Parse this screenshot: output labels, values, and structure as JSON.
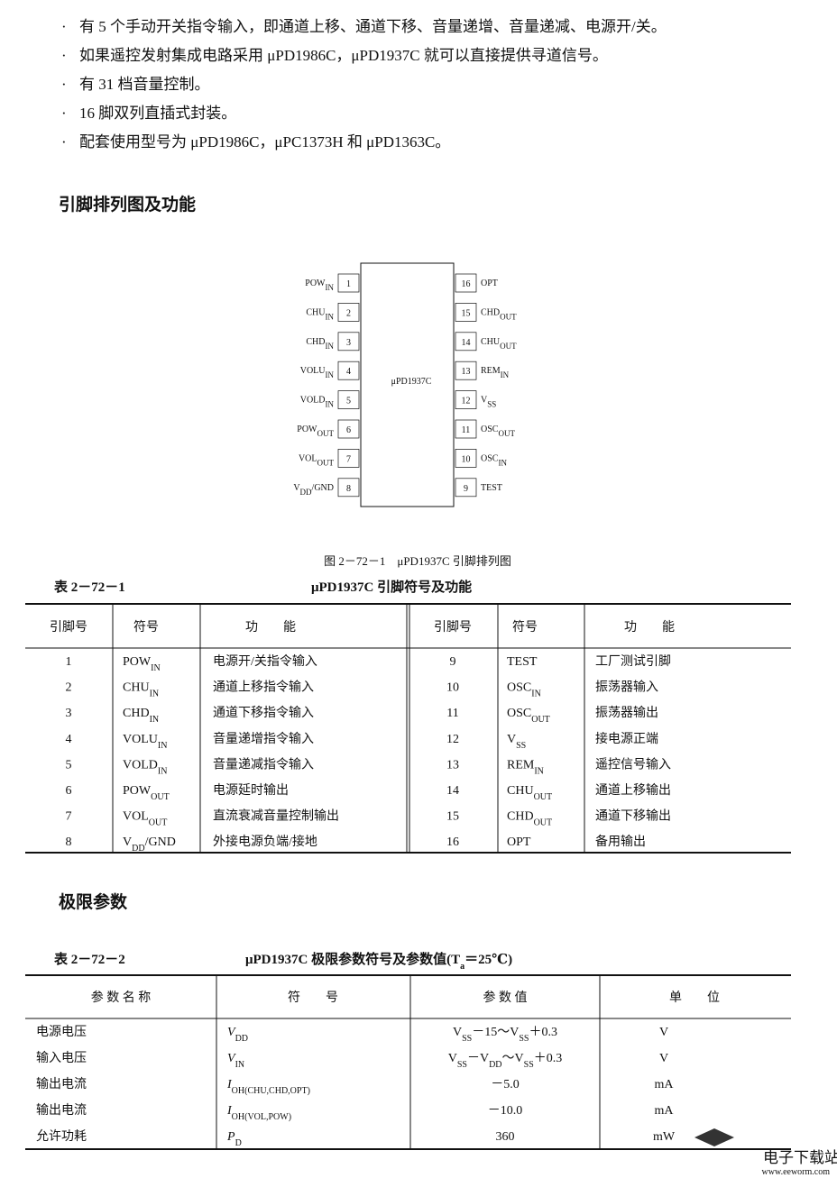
{
  "bullets": [
    "有 5 个手动开关指令输入，即通道上移、通道下移、音量递增、音量递减、电源开/关。",
    "如果遥控发射集成电路采用 μPD1986C，μPD1937C 就可以直接提供寻道信号。",
    "有 31 档音量控制。",
    "16 脚双列直插式封装。",
    "配套使用型号为 μPD1986C，μPC1373H 和 μPD1363C。"
  ],
  "section1": "引脚排列图及功能",
  "diagram": {
    "chip": "μPD1937C",
    "caption": "图 2－72－1　μPD1937C 引脚排列图",
    "pins": [
      {
        "number": 1,
        "symbol": [
          "POW",
          "IN"
        ],
        "function": "电源开/关指令输入"
      },
      {
        "number": 2,
        "symbol": [
          "CHU",
          "IN"
        ],
        "function": "通道上移指令输入"
      },
      {
        "number": 3,
        "symbol": [
          "CHD",
          "IN"
        ],
        "function": "通道下移指令输入"
      },
      {
        "number": 4,
        "symbol": [
          "VOLU",
          "IN"
        ],
        "function": "音量递增指令输入"
      },
      {
        "number": 5,
        "symbol": [
          "VOLD",
          "IN"
        ],
        "function": "音量递减指令输入"
      },
      {
        "number": 6,
        "symbol": [
          "POW",
          "OUT"
        ],
        "function": "电源延时输出"
      },
      {
        "number": 7,
        "symbol": [
          "VOL",
          "OUT"
        ],
        "function": "直流衰减音量控制输出"
      },
      {
        "number": 8,
        "symbol": [
          "V",
          "DD",
          "/GND"
        ],
        "function": "外接电源负端/接地"
      },
      {
        "number": 9,
        "symbol": [
          "TEST"
        ],
        "function": "工厂测试引脚"
      },
      {
        "number": 10,
        "symbol": [
          "OSC",
          "IN"
        ],
        "function": "振荡器输入"
      },
      {
        "number": 11,
        "symbol": [
          "OSC",
          "OUT"
        ],
        "function": "振荡器输出"
      },
      {
        "number": 12,
        "symbol": [
          "V",
          "SS"
        ],
        "function": "接电源正端"
      },
      {
        "number": 13,
        "symbol": [
          "REM",
          "IN"
        ],
        "function": "遥控信号输入"
      },
      {
        "number": 14,
        "symbol": [
          "CHU",
          "OUT"
        ],
        "function": "通道上移输出"
      },
      {
        "number": 15,
        "symbol": [
          "CHD",
          "OUT"
        ],
        "function": "通道下移输出"
      },
      {
        "number": 16,
        "symbol": [
          "OPT"
        ],
        "function": "备用输出"
      }
    ]
  },
  "table1": {
    "label": "表 2－72－1",
    "title": "μPD1937C 引脚符号及功能",
    "header": [
      "引脚号",
      "符号",
      "功　　能",
      "引脚号",
      "符号",
      "功　　能"
    ]
  },
  "section2": "极限参数",
  "table2": {
    "label": "表 2－72－2",
    "title": [
      "μPD1937C 极限参数符号及参数值(T",
      "a",
      "＝25℃)"
    ],
    "header": [
      "参 数 名 称",
      "符　　号",
      "参 数 值",
      "单　　位"
    ],
    "rows": [
      [
        "电源电压",
        [
          "V",
          "DD"
        ],
        [
          "V",
          "SS",
          "－15～V",
          "SS",
          "＋0.3"
        ],
        "V"
      ],
      [
        "输入电压",
        [
          "V",
          "IN"
        ],
        [
          "V",
          "SS",
          "－V",
          "DD",
          "～V",
          "SS",
          "＋0.3"
        ],
        "V"
      ],
      [
        "输出电流",
        [
          "I",
          "OH(CHU,CHD,OPT)"
        ],
        "－5.0",
        "mA"
      ],
      [
        "输出电流",
        [
          "I",
          "OH(VOL,POW)"
        ],
        "－10.0",
        "mA"
      ],
      [
        "允许功耗",
        [
          "P",
          "D"
        ],
        "360",
        "mW"
      ]
    ]
  },
  "watermark": {
    "name": "电子下载站",
    "url": "www.eeworm.com"
  }
}
